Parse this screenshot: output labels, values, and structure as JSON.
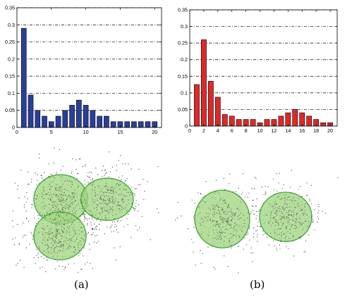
{
  "chart_data": [
    {
      "type": "bar",
      "categories": [
        1,
        2,
        3,
        4,
        5,
        6,
        7,
        8,
        9,
        10,
        11,
        12,
        13,
        14,
        15,
        16,
        17,
        18,
        19,
        20
      ],
      "values": [
        0.29,
        0.095,
        0.05,
        0.033,
        0.017,
        0.033,
        0.05,
        0.065,
        0.08,
        0.065,
        0.05,
        0.033,
        0.033,
        0.017,
        0.017,
        0.017,
        0.017,
        0.017,
        0.017,
        0.017
      ],
      "color": "#2a3f9a",
      "xlim": [
        0,
        21
      ],
      "ylim": [
        0,
        0.35
      ],
      "xticks": [
        0,
        5,
        10,
        15,
        20
      ],
      "yticks": [
        0,
        0.05,
        0.1,
        0.15,
        0.2,
        0.25,
        0.3,
        0.35
      ],
      "ytick_labels": [
        "0",
        "0.05",
        "0.1",
        "0.15",
        "0.2",
        "0.25",
        "0.3",
        "0.35"
      ],
      "grid": "horizontal dash-dot"
    },
    {
      "type": "bar",
      "categories": [
        1,
        2,
        3,
        4,
        5,
        6,
        7,
        8,
        9,
        10,
        11,
        12,
        13,
        14,
        15,
        16,
        17,
        18,
        19,
        20
      ],
      "values": [
        0.125,
        0.26,
        0.135,
        0.087,
        0.035,
        0.03,
        0.02,
        0.02,
        0.02,
        0.01,
        0.02,
        0.02,
        0.03,
        0.04,
        0.05,
        0.04,
        0.03,
        0.02,
        0.01,
        0.01
      ],
      "color": "#e02828",
      "xlim": [
        0,
        21
      ],
      "ylim": [
        0,
        0.35
      ],
      "xticks": [
        0,
        2,
        4,
        6,
        8,
        10,
        12,
        14,
        16,
        18,
        20
      ],
      "yticks": [
        0,
        0.05,
        0.1,
        0.15,
        0.2,
        0.25,
        0.3,
        0.35
      ],
      "ytick_labels": [
        "0",
        "0.05",
        "0.1",
        "0.15",
        "0.2",
        "0.25",
        "0.3",
        "0.35"
      ],
      "grid": "horizontal dash-dot"
    }
  ],
  "clusters": {
    "fill": "#9ed47e",
    "stroke": "#3fa83a",
    "dots": "#3a3a3a"
  },
  "captions": {
    "left": "(a)",
    "right": "(b)"
  }
}
